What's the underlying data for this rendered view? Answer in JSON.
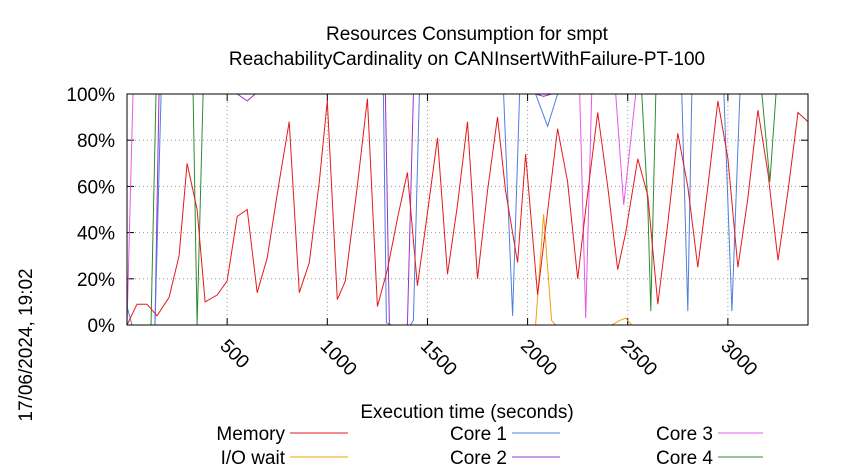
{
  "chart_data": {
    "type": "line",
    "title": "Resources Consumption for smpt",
    "subtitle": "ReachabilityCardinality on CANInsertWithFailure-PT-100",
    "xlabel": "Execution time (seconds)",
    "ylabel": "",
    "side_label": "17/06/2024, 19:02",
    "xlim": [
      0,
      3400
    ],
    "ylim": [
      0,
      100
    ],
    "x_ticks": [
      500,
      1000,
      1500,
      2000,
      2500,
      3000
    ],
    "y_ticks": [
      0,
      20,
      40,
      60,
      80,
      100
    ],
    "y_tick_labels": [
      "0%",
      "20%",
      "40%",
      "60%",
      "80%",
      "100%"
    ],
    "grid": true,
    "legend_position": "bottom",
    "series": [
      {
        "name": "Memory",
        "color": "#e41a1c",
        "x": [
          0,
          50,
          100,
          150,
          210,
          260,
          300,
          350,
          390,
          450,
          500,
          550,
          600,
          650,
          700,
          760,
          810,
          860,
          910,
          960,
          1000,
          1050,
          1090,
          1150,
          1200,
          1250,
          1300,
          1350,
          1400,
          1450,
          1490,
          1550,
          1600,
          1650,
          1700,
          1750,
          1800,
          1850,
          1890,
          1950,
          1990,
          2050,
          2090,
          2150,
          2200,
          2250,
          2290,
          2350,
          2400,
          2450,
          2490,
          2550,
          2600,
          2650,
          2700,
          2750,
          2800,
          2850,
          2900,
          2950,
          3000,
          3050,
          3100,
          3150,
          3200,
          3250,
          3300,
          3350,
          3400
        ],
        "values": [
          0,
          9,
          9,
          4,
          12,
          30,
          70,
          50,
          10,
          13,
          19,
          47,
          50,
          14,
          29,
          62,
          88,
          14,
          27,
          62,
          97,
          11,
          19,
          60,
          98,
          8,
          24,
          46,
          66,
          17,
          42,
          81,
          22,
          52,
          88,
          20,
          58,
          90,
          58,
          27,
          74,
          13,
          42,
          85,
          62,
          20,
          50,
          92,
          60,
          24,
          40,
          72,
          56,
          9,
          44,
          83,
          60,
          25,
          60,
          97,
          72,
          25,
          55,
          93,
          66,
          28,
          58,
          92,
          88
        ]
      },
      {
        "name": "I/O wait",
        "color": "#f0a30a",
        "x": [
          0,
          2040,
          2080,
          2120,
          2140,
          2420,
          2460,
          2490,
          2520,
          3400
        ],
        "values": [
          0,
          0,
          48,
          2,
          0,
          0,
          2,
          3,
          0,
          0
        ]
      },
      {
        "name": "Core 1",
        "color": "#4e7ee0",
        "x": [
          0,
          25,
          40,
          140,
          170,
          1280,
          1295,
          1320,
          1415,
          1430,
          1460,
          1880,
          1925,
          1960,
          1980,
          2040,
          2100,
          2150,
          2770,
          2800,
          2820,
          2950,
          2980,
          3020,
          3060,
          3400
        ],
        "values": [
          8,
          0,
          0,
          0,
          100,
          100,
          1,
          0,
          0,
          2,
          100,
          100,
          4,
          100,
          100,
          100,
          86,
          100,
          100,
          6,
          100,
          100,
          100,
          6,
          100,
          100
        ]
      },
      {
        "name": "Core 2",
        "color": "#9b30d0",
        "x": [
          0,
          30,
          140,
          160,
          550,
          600,
          640,
          1290,
          1310,
          1400,
          1430,
          1460,
          2040,
          2080,
          2120,
          3400
        ],
        "values": [
          0,
          0,
          0,
          100,
          100,
          97,
          100,
          100,
          0,
          0,
          100,
          100,
          100,
          99,
          100,
          100
        ]
      },
      {
        "name": "Core 3",
        "color": "#e658e6",
        "x": [
          0,
          30,
          60,
          120,
          2260,
          2290,
          2320,
          2440,
          2480,
          2540,
          2600,
          2660,
          3180,
          3240,
          3400
        ],
        "values": [
          0,
          100,
          100,
          100,
          100,
          3,
          100,
          100,
          52,
          100,
          100,
          100,
          100,
          100,
          100
        ]
      },
      {
        "name": "Core 4",
        "color": "#2e8b2e",
        "x": [
          0,
          30,
          60,
          120,
          145,
          290,
          330,
          350,
          380,
          410,
          1220,
          1235,
          1410,
          1450,
          1470,
          2570,
          2600,
          2615,
          2640,
          3170,
          3210,
          3240,
          3400
        ],
        "values": [
          0,
          0,
          0,
          0,
          100,
          100,
          100,
          0,
          100,
          100,
          100,
          100,
          100,
          100,
          100,
          100,
          52,
          6,
          100,
          100,
          62,
          100,
          100
        ]
      }
    ]
  }
}
